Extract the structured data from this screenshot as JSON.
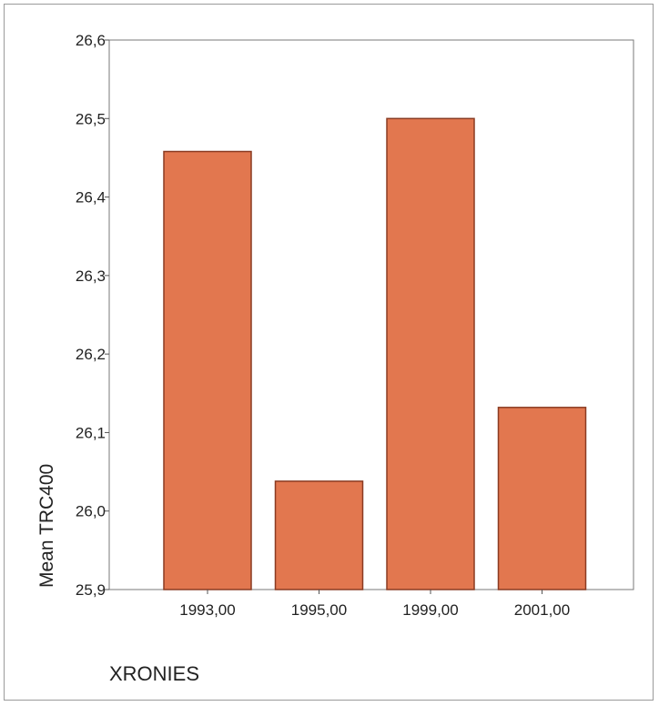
{
  "chart_data": {
    "type": "bar",
    "categories": [
      "1993,00",
      "1995,00",
      "1999,00",
      "2001,00"
    ],
    "values": [
      26.458,
      26.038,
      26.5,
      26.132
    ],
    "ylabel": "Mean TRC400",
    "xlabel": "XRONIES",
    "ylim": [
      25.9,
      26.6
    ],
    "yticks": [
      25.9,
      26.0,
      26.1,
      26.2,
      26.3,
      26.4,
      26.5,
      26.6
    ],
    "ytick_labels": [
      "25,9",
      "26,0",
      "26,1",
      "26,2",
      "26,3",
      "26,4",
      "26,5",
      "26,6"
    ],
    "grid": false,
    "legend": "none",
    "bar_color": "#e2774f",
    "bar_edge_color": "#8a3b22"
  }
}
